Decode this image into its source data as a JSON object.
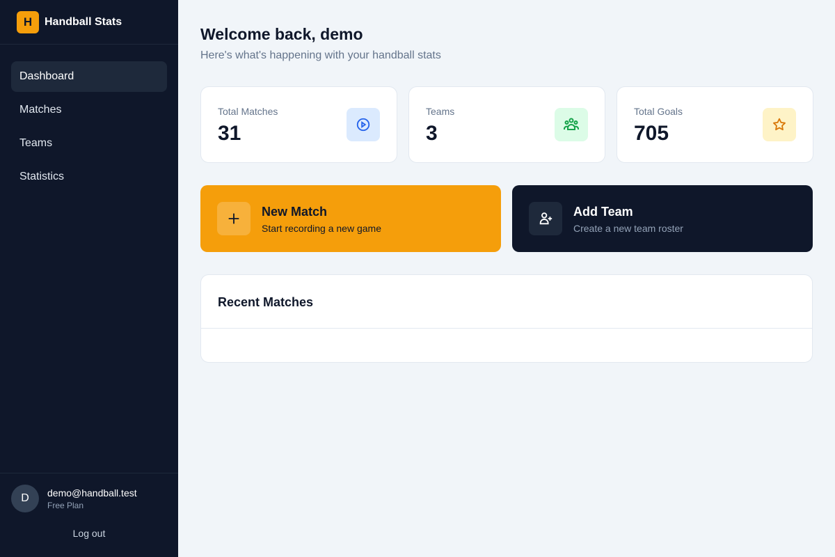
{
  "brand": {
    "logo_letter": "H",
    "name": "Handball Stats"
  },
  "nav": [
    {
      "label": "Dashboard",
      "active": true
    },
    {
      "label": "Matches"
    },
    {
      "label": "Teams"
    },
    {
      "label": "Statistics"
    }
  ],
  "user": {
    "initial": "D",
    "email": "demo@handball.test",
    "plan": "Free Plan",
    "logout": "Log out"
  },
  "header": {
    "title": "Welcome back, demo",
    "subtitle": "Here's what's happening with your handball stats"
  },
  "stats": [
    {
      "label": "Total Matches",
      "value": "31",
      "icon": "play-circle-icon",
      "color": "#2563eb",
      "bg": "#dbeafe"
    },
    {
      "label": "Teams",
      "value": "3",
      "icon": "users-group-icon",
      "color": "#16a34a",
      "bg": "#dcfce7"
    },
    {
      "label": "Total Goals",
      "value": "705",
      "icon": "star-icon",
      "color": "#d97706",
      "bg": "#fef3c7"
    }
  ],
  "actions": [
    {
      "title": "New Match",
      "desc": "Start recording a new game",
      "icon": "plus-icon",
      "bg": "#f59e0b"
    },
    {
      "title": "Add Team",
      "desc": "Create a new team roster",
      "icon": "user-plus-icon",
      "bg": "#0f172a"
    }
  ],
  "recent": {
    "title": "Recent Matches"
  }
}
